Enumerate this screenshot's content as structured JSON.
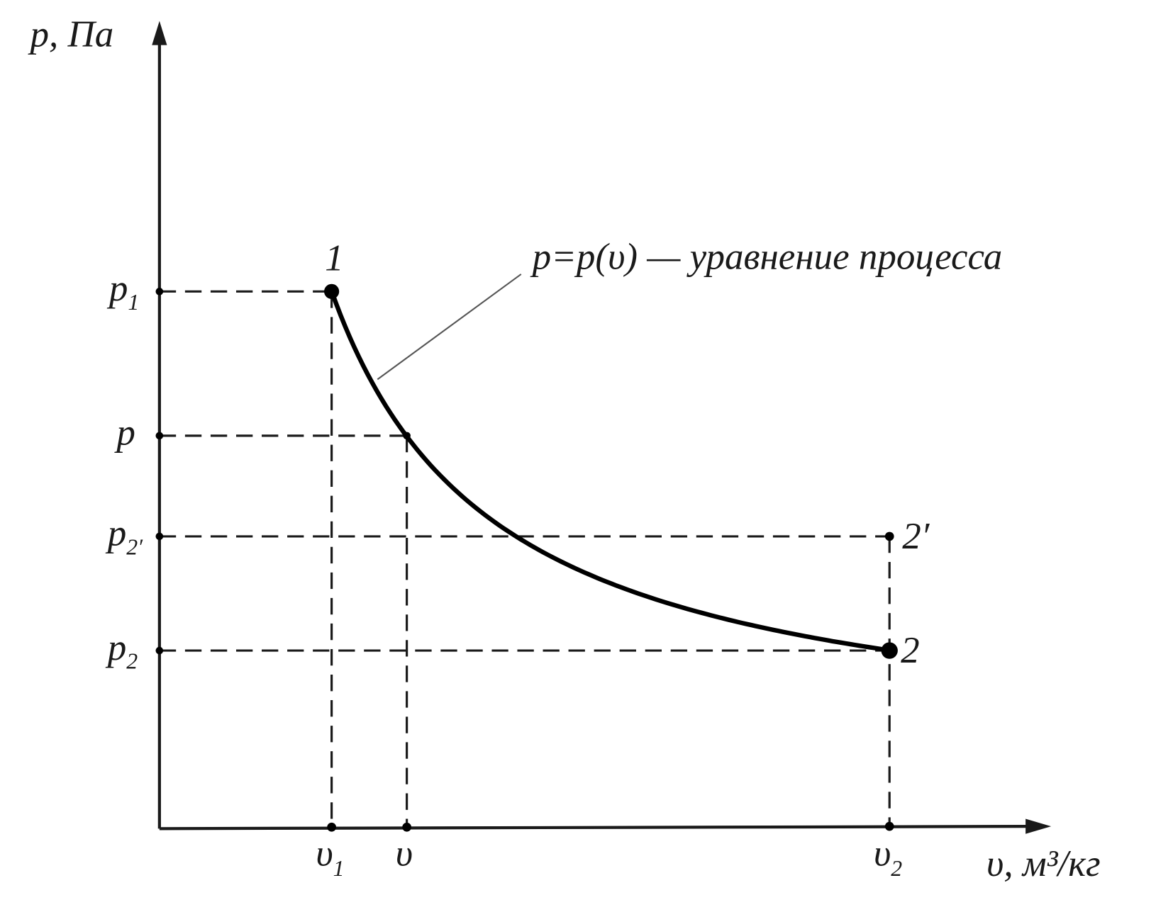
{
  "axes": {
    "y_label": "p, Па",
    "x_label": "υ, м³/кг"
  },
  "y_ticks": [
    {
      "main": "p",
      "sub": "1"
    },
    {
      "main": "p",
      "sub": ""
    },
    {
      "main": "p",
      "sub": "2′"
    },
    {
      "main": "p",
      "sub": "2"
    }
  ],
  "x_ticks": [
    {
      "main": "υ",
      "sub": "1"
    },
    {
      "main": "υ",
      "sub": ""
    },
    {
      "main": "υ",
      "sub": "2"
    }
  ],
  "points": [
    "1",
    "2",
    "2′"
  ],
  "annotation": "p=p(υ) — уравнение процесса"
}
